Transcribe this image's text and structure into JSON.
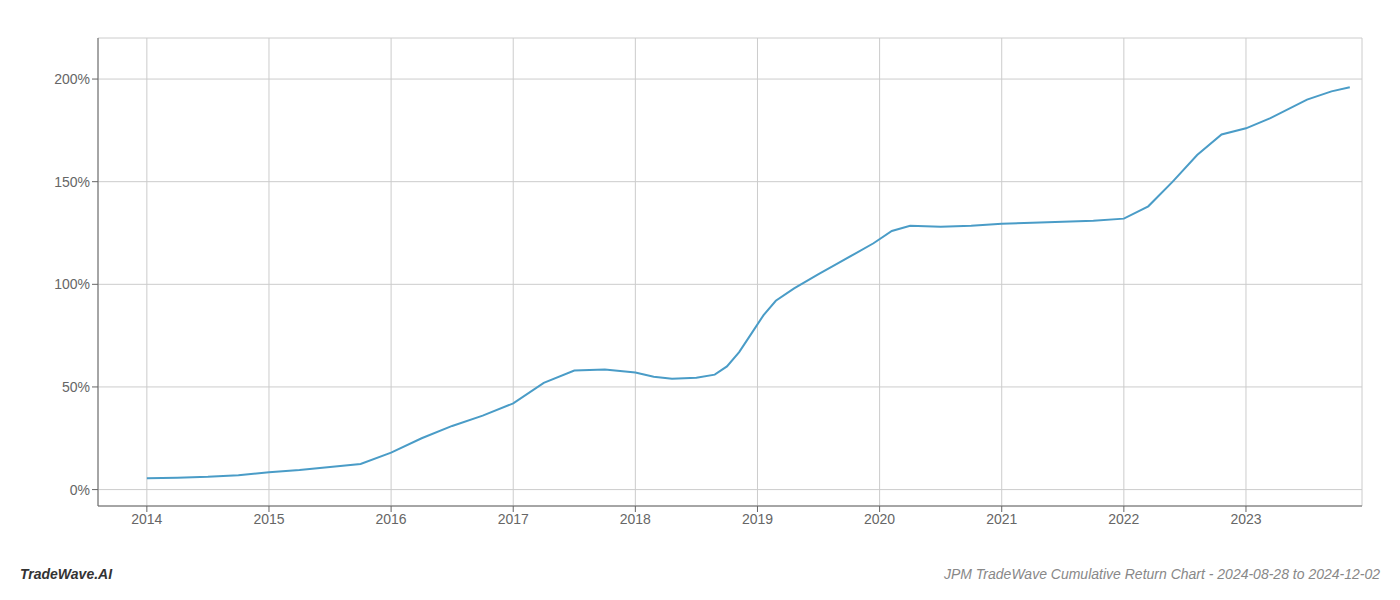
{
  "chart_data": {
    "type": "line",
    "title": "JPM TradeWave Cumulative Return Chart - 2024-08-28 to 2024-12-02",
    "annotations": [
      "TradeWave.AI"
    ],
    "color": "#4a9cc7",
    "grid": true,
    "x": [
      2014.0,
      2014.25,
      2014.5,
      2014.75,
      2015.0,
      2015.25,
      2015.5,
      2015.75,
      2016.0,
      2016.25,
      2016.5,
      2016.75,
      2017.0,
      2017.25,
      2017.5,
      2017.75,
      2018.0,
      2018.15,
      2018.3,
      2018.5,
      2018.65,
      2018.75,
      2018.85,
      2018.95,
      2019.05,
      2019.15,
      2019.3,
      2019.5,
      2019.65,
      2019.8,
      2019.95,
      2020.1,
      2020.25,
      2020.5,
      2020.75,
      2021.0,
      2021.25,
      2021.5,
      2021.75,
      2022.0,
      2022.2,
      2022.4,
      2022.6,
      2022.8,
      2023.0,
      2023.2,
      2023.5,
      2023.7,
      2023.85
    ],
    "values": [
      5.5,
      5.8,
      6.2,
      7.0,
      8.5,
      9.5,
      11.0,
      12.5,
      18.0,
      25.0,
      31.0,
      36.0,
      42.0,
      52.0,
      58.0,
      58.5,
      57.0,
      55.0,
      54.0,
      54.5,
      56.0,
      60.0,
      67.0,
      76.0,
      85.0,
      92.0,
      98.0,
      105.0,
      110.0,
      115.0,
      120.0,
      126.0,
      128.5,
      128.0,
      128.5,
      129.5,
      130.0,
      130.5,
      131.0,
      132.0,
      138.0,
      150.0,
      163.0,
      173.0,
      176.0,
      181.0,
      190.0,
      194.0,
      196.0
    ],
    "xlim": [
      2013.6,
      2023.95
    ],
    "xticks": [
      2014,
      2015,
      2016,
      2017,
      2018,
      2019,
      2020,
      2021,
      2022,
      2023
    ],
    "ylim": [
      -8,
      220
    ],
    "yticks": [
      {
        "value": 0,
        "label": "0%"
      },
      {
        "value": 50,
        "label": "50%"
      },
      {
        "value": 100,
        "label": "100%"
      },
      {
        "value": 150,
        "label": "150%"
      },
      {
        "value": 200,
        "label": "200%"
      }
    ]
  }
}
